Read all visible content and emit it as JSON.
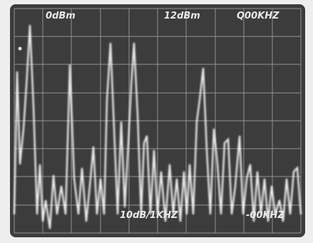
{
  "screen": {
    "top_labels": [
      "0dBm",
      "12dBm",
      "Q00KHZ"
    ],
    "bottom_labels": [
      "10dB/1KHZ",
      "-00KHZ"
    ]
  }
}
